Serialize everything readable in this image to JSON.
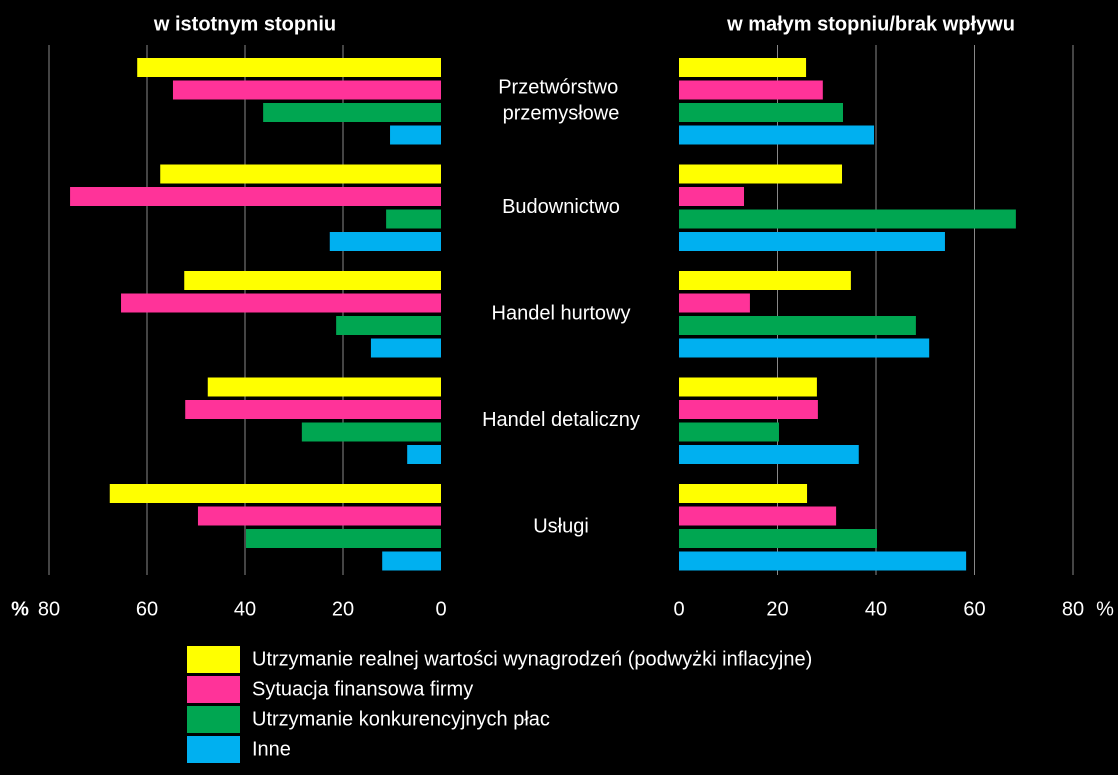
{
  "chart_data": {
    "type": "bar",
    "orientation": "horizontal",
    "unit": "%",
    "categories": [
      "Przetwórstwo przemysłowe",
      "Budownictwo",
      "Handel hurtowy",
      "Handel detaliczny",
      "Usługi"
    ],
    "series": [
      {
        "name": "Utrzymanie realnej wartości wynagrodzeń (podwyżki inflacyjne)",
        "color": "#ffff00"
      },
      {
        "name": "Sytuacja finansowa firmy",
        "color": "#ff3399"
      },
      {
        "name": "Utrzymanie konkurencyjnych płac",
        "color": "#00a651"
      },
      {
        "name": "Inne",
        "color": "#00b0f0"
      }
    ],
    "grid": true,
    "panels": [
      {
        "title": "w istotnym stopniu",
        "direction": "left",
        "xlim": [
          0,
          80
        ],
        "xticks": [
          0,
          20,
          40,
          60,
          80
        ],
        "values": [
          [
            62,
            57.3,
            52.4,
            47.6,
            67.6
          ],
          [
            54.7,
            75.7,
            65.3,
            52.2,
            49.6
          ],
          [
            36.3,
            11.2,
            21.4,
            28.4,
            39.8
          ],
          [
            10.4,
            22.7,
            14.3,
            6.9,
            12
          ]
        ]
      },
      {
        "title": "w małym stopniu/brak wpływu",
        "direction": "right",
        "xlim": [
          0,
          80
        ],
        "xticks": [
          0,
          20,
          40,
          60,
          80
        ],
        "values": [
          [
            25.8,
            33.1,
            34.9,
            28,
            26
          ],
          [
            29.2,
            13.2,
            14.4,
            28.2,
            31.9
          ],
          [
            33.3,
            68.4,
            48.1,
            20.3,
            40.2
          ],
          [
            39.6,
            54,
            50.8,
            36.5,
            58.3
          ]
        ]
      }
    ]
  }
}
